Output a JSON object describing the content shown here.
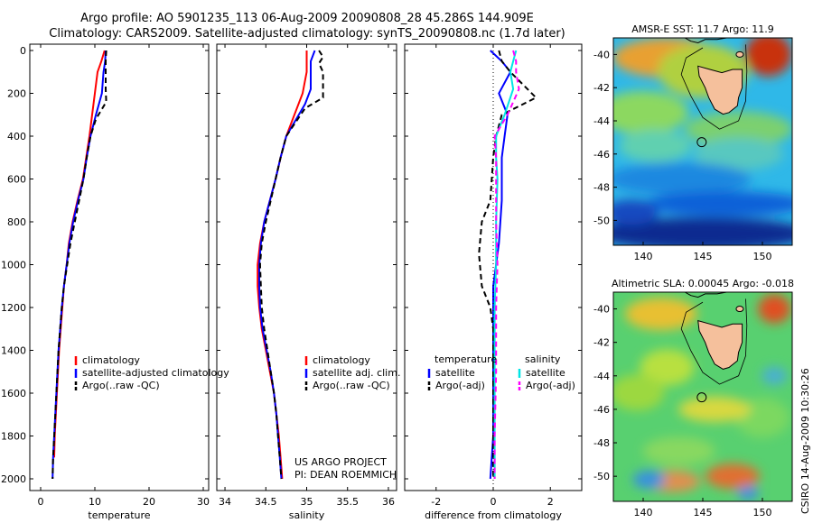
{
  "header": {
    "title_line1": "Argo profile: AO 5901235_113 06-Aug-2009 20090808_28 45.286S 144.909E",
    "title_line2": "Climatology: CARS2009. Satellite-adjusted climatology: synTS_20090808.nc (1.7d later)"
  },
  "side_note": "CSIRO 14-Aug-2009 10:30:26",
  "credit": {
    "line1": "US ARGO PROJECT",
    "line2": "PI: DEAN ROEMMICH"
  },
  "colors": {
    "climatology": "#ff0000",
    "satellite": "#0000ff",
    "argo": "#000000",
    "sat_salinity": "#00e5e5",
    "argo_salinity": "#ff00ff",
    "land": "#f5c09c"
  },
  "chart_data": [
    {
      "type": "line",
      "id": "temperature-profile",
      "xlabel": "temperature",
      "xlim": [
        -2,
        31
      ],
      "ylim": [
        0,
        2050
      ],
      "y_reversed": true,
      "xticks": [
        0,
        10,
        20,
        30
      ],
      "yticks": [
        0,
        200,
        400,
        600,
        800,
        1000,
        1200,
        1400,
        1600,
        1800,
        2000
      ],
      "legend": [
        {
          "label": "climatology",
          "style": "solid",
          "color": "#ff0000"
        },
        {
          "label": "satellite-adjusted climatology",
          "style": "solid",
          "color": "#0000ff"
        },
        {
          "label": "Argo(..raw -QC)",
          "style": "dashed",
          "color": "#000000"
        }
      ],
      "series": [
        {
          "name": "climatology",
          "color": "#ff0000",
          "dash": "",
          "points": [
            [
              11.8,
              0
            ],
            [
              11.2,
              50
            ],
            [
              10.5,
              100
            ],
            [
              10.0,
              200
            ],
            [
              9.5,
              300
            ],
            [
              9.0,
              400
            ],
            [
              8.4,
              500
            ],
            [
              7.8,
              600
            ],
            [
              6.8,
              700
            ],
            [
              5.9,
              800
            ],
            [
              5.2,
              900
            ],
            [
              4.8,
              1000
            ],
            [
              4.3,
              1100
            ],
            [
              4.0,
              1200
            ],
            [
              3.7,
              1300
            ],
            [
              3.4,
              1400
            ],
            [
              3.2,
              1500
            ],
            [
              3.0,
              1600
            ],
            [
              2.8,
              1700
            ],
            [
              2.6,
              1800
            ],
            [
              2.5,
              1900
            ]
          ]
        },
        {
          "name": "satellite-adjusted climatology",
          "color": "#0000ff",
          "dash": "",
          "points": [
            [
              12.0,
              0
            ],
            [
              11.9,
              50
            ],
            [
              11.6,
              100
            ],
            [
              11.3,
              200
            ],
            [
              10.2,
              300
            ],
            [
              9.2,
              400
            ],
            [
              8.5,
              500
            ],
            [
              7.9,
              600
            ],
            [
              6.9,
              700
            ],
            [
              6.0,
              800
            ],
            [
              5.3,
              900
            ],
            [
              4.8,
              1000
            ],
            [
              4.3,
              1100
            ],
            [
              3.9,
              1200
            ],
            [
              3.6,
              1300
            ],
            [
              3.3,
              1400
            ],
            [
              3.1,
              1500
            ],
            [
              2.9,
              1600
            ],
            [
              2.7,
              1700
            ],
            [
              2.5,
              1800
            ],
            [
              2.3,
              1900
            ],
            [
              2.2,
              2000
            ]
          ]
        },
        {
          "name": "Argo(..raw -QC)",
          "color": "#000000",
          "dash": "6,4",
          "points": [
            [
              12.1,
              0
            ],
            [
              12.0,
              50
            ],
            [
              12.0,
              100
            ],
            [
              12.0,
              180
            ],
            [
              12.1,
              240
            ],
            [
              10.2,
              320
            ],
            [
              9.2,
              400
            ],
            [
              8.5,
              500
            ],
            [
              7.9,
              600
            ],
            [
              7.1,
              700
            ],
            [
              6.3,
              800
            ],
            [
              5.5,
              900
            ],
            [
              4.9,
              1000
            ],
            [
              4.3,
              1100
            ],
            [
              3.9,
              1200
            ],
            [
              3.6,
              1300
            ],
            [
              3.3,
              1400
            ],
            [
              3.1,
              1500
            ],
            [
              2.9,
              1600
            ],
            [
              2.7,
              1700
            ],
            [
              2.5,
              1800
            ],
            [
              2.3,
              1900
            ],
            [
              2.2,
              2000
            ]
          ]
        }
      ]
    },
    {
      "type": "line",
      "id": "salinity-profile",
      "xlabel": "salinity",
      "xlim": [
        33.9,
        36.1
      ],
      "ylim": [
        0,
        2050
      ],
      "y_reversed": true,
      "xticks": [
        34,
        34.5,
        35,
        35.5,
        36
      ],
      "xticklabels": [
        "34",
        "34.5",
        "35",
        "35.5",
        "36"
      ],
      "legend": [
        {
          "label": "climatology",
          "style": "solid",
          "color": "#ff0000"
        },
        {
          "label": "satellite adj. clim.",
          "style": "solid",
          "color": "#0000ff"
        },
        {
          "label": "Argo(..raw -QC)",
          "style": "dashed",
          "color": "#000000"
        }
      ],
      "series": [
        {
          "name": "climatology",
          "color": "#ff0000",
          "dash": "",
          "points": [
            [
              35.0,
              0
            ],
            [
              35.0,
              50
            ],
            [
              35.0,
              100
            ],
            [
              34.95,
              200
            ],
            [
              34.85,
              300
            ],
            [
              34.75,
              400
            ],
            [
              34.68,
              500
            ],
            [
              34.62,
              600
            ],
            [
              34.55,
              700
            ],
            [
              34.48,
              800
            ],
            [
              34.43,
              900
            ],
            [
              34.4,
              1000
            ],
            [
              34.4,
              1100
            ],
            [
              34.42,
              1200
            ],
            [
              34.45,
              1300
            ],
            [
              34.5,
              1400
            ],
            [
              34.55,
              1500
            ],
            [
              34.6,
              1600
            ],
            [
              34.63,
              1700
            ],
            [
              34.66,
              1800
            ],
            [
              34.68,
              1900
            ],
            [
              34.7,
              2000
            ]
          ]
        },
        {
          "name": "satellite adj. clim.",
          "color": "#0000ff",
          "dash": "",
          "points": [
            [
              35.1,
              0
            ],
            [
              35.05,
              50
            ],
            [
              35.05,
              100
            ],
            [
              35.05,
              180
            ],
            [
              34.98,
              250
            ],
            [
              34.75,
              400
            ],
            [
              34.68,
              500
            ],
            [
              34.62,
              600
            ],
            [
              34.55,
              700
            ],
            [
              34.48,
              800
            ],
            [
              34.44,
              900
            ],
            [
              34.42,
              1000
            ],
            [
              34.42,
              1100
            ],
            [
              34.43,
              1200
            ],
            [
              34.46,
              1300
            ],
            [
              34.51,
              1400
            ],
            [
              34.56,
              1500
            ],
            [
              34.6,
              1600
            ],
            [
              34.63,
              1700
            ],
            [
              34.65,
              1800
            ],
            [
              34.67,
              1900
            ],
            [
              34.69,
              2000
            ]
          ]
        },
        {
          "name": "Argo(..raw -QC)",
          "color": "#000000",
          "dash": "6,4",
          "points": [
            [
              35.15,
              0
            ],
            [
              35.2,
              30
            ],
            [
              35.15,
              60
            ],
            [
              35.2,
              100
            ],
            [
              35.2,
              150
            ],
            [
              35.2,
              220
            ],
            [
              34.98,
              270
            ],
            [
              34.75,
              400
            ],
            [
              34.68,
              500
            ],
            [
              34.62,
              600
            ],
            [
              34.56,
              700
            ],
            [
              34.5,
              800
            ],
            [
              34.45,
              900
            ],
            [
              34.43,
              1000
            ],
            [
              34.44,
              1100
            ],
            [
              34.45,
              1200
            ],
            [
              34.48,
              1300
            ],
            [
              34.52,
              1400
            ],
            [
              34.56,
              1500
            ],
            [
              34.6,
              1600
            ],
            [
              34.63,
              1700
            ],
            [
              34.65,
              1800
            ],
            [
              34.67,
              1900
            ],
            [
              34.69,
              2000
            ]
          ]
        }
      ]
    },
    {
      "type": "line",
      "id": "difference-profile",
      "xlabel": "difference from climatology",
      "xlim": [
        -3.1,
        3.1
      ],
      "ylim": [
        0,
        2050
      ],
      "y_reversed": true,
      "xticks": [
        -2,
        0,
        2
      ],
      "xticklabels": [
        "-2",
        "0",
        "2"
      ],
      "legend_temperature": {
        "title": "temperature",
        "items": [
          {
            "label": "satellite",
            "style": "solid",
            "color": "#0000ff"
          },
          {
            "label": "Argo(-adj)",
            "style": "dashed",
            "color": "#000000"
          }
        ]
      },
      "legend_salinity": {
        "title": "salinity",
        "items": [
          {
            "label": "satellite",
            "style": "solid",
            "color": "#00e5e5"
          },
          {
            "label": "Argo(-adj)",
            "style": "dashed",
            "color": "#ff00ff"
          }
        ]
      },
      "series": [
        {
          "name": "temperature satellite",
          "color": "#0000ff",
          "dash": "",
          "points": [
            [
              -0.1,
              0
            ],
            [
              0.3,
              50
            ],
            [
              0.6,
              100
            ],
            [
              0.2,
              200
            ],
            [
              0.5,
              300
            ],
            [
              0.4,
              400
            ],
            [
              0.3,
              500
            ],
            [
              0.3,
              600
            ],
            [
              0.3,
              700
            ],
            [
              0.25,
              800
            ],
            [
              0.2,
              900
            ],
            [
              0.1,
              1000
            ],
            [
              0.0,
              1100
            ],
            [
              0.0,
              1200
            ],
            [
              0.0,
              1400
            ],
            [
              0.0,
              1600
            ],
            [
              0.0,
              1800
            ],
            [
              -0.1,
              2000
            ]
          ]
        },
        {
          "name": "temperature Argo(-adj)",
          "color": "#000000",
          "dash": "6,4",
          "points": [
            [
              0.2,
              0
            ],
            [
              0.3,
              50
            ],
            [
              0.6,
              100
            ],
            [
              1.5,
              220
            ],
            [
              0.3,
              300
            ],
            [
              0.1,
              400
            ],
            [
              0.0,
              500
            ],
            [
              -0.1,
              700
            ],
            [
              -0.4,
              800
            ],
            [
              -0.5,
              950
            ],
            [
              -0.4,
              1100
            ],
            [
              -0.1,
              1200
            ],
            [
              0.0,
              1300
            ],
            [
              0.0,
              1500
            ],
            [
              0.0,
              1800
            ],
            [
              0.0,
              2000
            ]
          ]
        },
        {
          "name": "salinity satellite",
          "color": "#00e5e5",
          "dash": "",
          "points": [
            [
              0.8,
              0
            ],
            [
              0.7,
              50
            ],
            [
              0.6,
              100
            ],
            [
              0.7,
              180
            ],
            [
              0.4,
              300
            ],
            [
              0.1,
              400
            ],
            [
              0.1,
              500
            ],
            [
              0.15,
              600
            ],
            [
              0.1,
              800
            ],
            [
              0.1,
              1000
            ],
            [
              0.05,
              1200
            ],
            [
              0.05,
              1500
            ],
            [
              0.05,
              1800
            ],
            [
              0.05,
              2000
            ]
          ]
        },
        {
          "name": "salinity Argo(-adj)",
          "color": "#ff00ff",
          "dash": "6,4",
          "points": [
            [
              0.7,
              0
            ],
            [
              0.8,
              50
            ],
            [
              0.8,
              100
            ],
            [
              0.9,
              180
            ],
            [
              0.5,
              300
            ],
            [
              0.05,
              400
            ],
            [
              0.1,
              500
            ],
            [
              0.1,
              800
            ],
            [
              0.15,
              1000
            ],
            [
              0.1,
              1200
            ],
            [
              0.1,
              1500
            ],
            [
              0.05,
              1800
            ],
            [
              0.05,
              2000
            ]
          ]
        },
        {
          "name": "reference",
          "color": "#000000",
          "dash": "1,3",
          "points": [
            [
              0,
              0
            ],
            [
              0,
              2050
            ]
          ]
        }
      ]
    },
    {
      "type": "heatmap",
      "id": "sst-map",
      "title": "AMSR-E SST: 11.7 Argo: 11.9",
      "xlim": [
        137.5,
        152.5
      ],
      "ylim": [
        -51.5,
        -39
      ],
      "xticks": [
        140,
        145,
        150
      ],
      "yticks": [
        -40,
        -42,
        -44,
        -46,
        -48,
        -50
      ],
      "marker": {
        "lon": 144.909,
        "lat": -45.286
      }
    },
    {
      "type": "heatmap",
      "id": "sla-map",
      "title": "Altimetric SLA: 0.00045 Argo: -0.018",
      "xlim": [
        137.5,
        152.5
      ],
      "ylim": [
        -51.5,
        -39
      ],
      "xticks": [
        140,
        145,
        150
      ],
      "yticks": [
        -40,
        -42,
        -44,
        -46,
        -48,
        -50
      ],
      "marker": {
        "lon": 144.909,
        "lat": -45.286
      }
    }
  ]
}
